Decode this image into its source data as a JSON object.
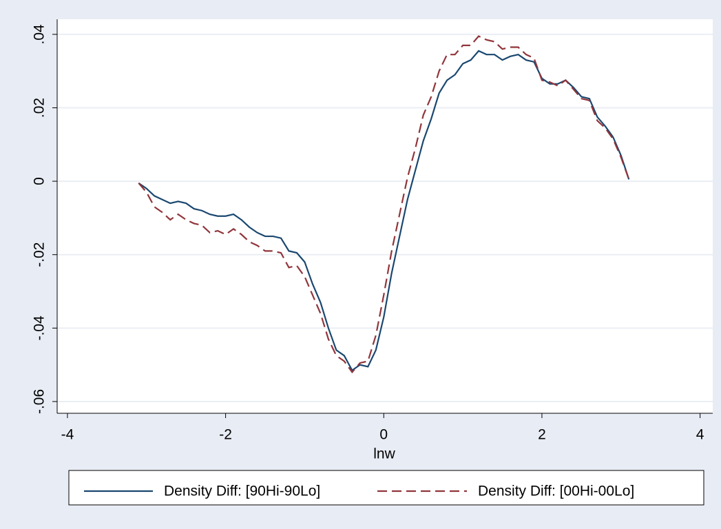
{
  "chart_data": {
    "type": "line",
    "x_label": "lnw",
    "x": [
      -3.1,
      -3.0,
      -2.9,
      -2.8,
      -2.7,
      -2.6,
      -2.5,
      -2.4,
      -2.3,
      -2.2,
      -2.1,
      -2.0,
      -1.9,
      -1.8,
      -1.7,
      -1.6,
      -1.5,
      -1.4,
      -1.3,
      -1.2,
      -1.1,
      -1.0,
      -0.9,
      -0.8,
      -0.7,
      -0.6,
      -0.5,
      -0.4,
      -0.3,
      -0.2,
      -0.1,
      0.0,
      0.1,
      0.2,
      0.3,
      0.4,
      0.5,
      0.6,
      0.7,
      0.8,
      0.9,
      1.0,
      1.1,
      1.2,
      1.3,
      1.4,
      1.5,
      1.6,
      1.7,
      1.8,
      1.9,
      2.0,
      2.1,
      2.2,
      2.3,
      2.4,
      2.5,
      2.6,
      2.7,
      2.8,
      2.9,
      3.0,
      3.1
    ],
    "series": [
      {
        "name": "Density Diff: [90Hi-90Lo]",
        "color": "#1a476f",
        "style": "solid",
        "values": [
          -0.0005,
          -0.002,
          -0.004,
          -0.005,
          -0.006,
          -0.0055,
          -0.006,
          -0.0075,
          -0.008,
          -0.009,
          -0.0095,
          -0.0095,
          -0.009,
          -0.0105,
          -0.0125,
          -0.014,
          -0.015,
          -0.015,
          -0.0155,
          -0.019,
          -0.0195,
          -0.022,
          -0.028,
          -0.033,
          -0.04,
          -0.046,
          -0.0475,
          -0.0515,
          -0.05,
          -0.0505,
          -0.046,
          -0.037,
          -0.025,
          -0.015,
          -0.005,
          0.003,
          0.011,
          0.017,
          0.024,
          0.0275,
          0.029,
          0.032,
          0.033,
          0.0355,
          0.0345,
          0.0345,
          0.033,
          0.034,
          0.0345,
          0.033,
          0.0325,
          0.028,
          0.0265,
          0.0265,
          0.0275,
          0.0255,
          0.023,
          0.0225,
          0.0175,
          0.015,
          0.012,
          0.007,
          0.0005
        ]
      },
      {
        "name": "Density Diff: [00Hi-00Lo]",
        "color": "#90353b",
        "style": "dashed",
        "values": [
          -0.0005,
          -0.003,
          -0.007,
          -0.0085,
          -0.0105,
          -0.009,
          -0.0105,
          -0.0115,
          -0.012,
          -0.014,
          -0.0135,
          -0.0145,
          -0.013,
          -0.0145,
          -0.0165,
          -0.0175,
          -0.019,
          -0.019,
          -0.0195,
          -0.0235,
          -0.023,
          -0.026,
          -0.031,
          -0.036,
          -0.043,
          -0.0475,
          -0.049,
          -0.052,
          -0.0495,
          -0.049,
          -0.042,
          -0.031,
          -0.019,
          -0.009,
          0.001,
          0.009,
          0.018,
          0.023,
          0.03,
          0.0345,
          0.0345,
          0.037,
          0.037,
          0.0395,
          0.0385,
          0.038,
          0.036,
          0.0365,
          0.0365,
          0.0345,
          0.0335,
          0.0275,
          0.027,
          0.026,
          0.0275,
          0.025,
          0.0225,
          0.022,
          0.0165,
          0.0145,
          0.0115,
          0.0065,
          0.0005
        ]
      }
    ],
    "xlim": [
      -4.13,
      4.16
    ],
    "xticks": [
      -4,
      -2,
      0,
      2,
      4
    ],
    "ylim": [
      -0.0632,
      0.0441
    ],
    "yticks": [
      {
        "value": -0.06,
        "label": "-.06"
      },
      {
        "value": -0.04,
        "label": "-.04"
      },
      {
        "value": -0.02,
        "label": "-.02"
      },
      0,
      {
        "value": 0.02,
        "label": ".02"
      },
      {
        "value": 0.04,
        "label": ".04"
      }
    ],
    "grid": true,
    "legend": "bottom"
  }
}
